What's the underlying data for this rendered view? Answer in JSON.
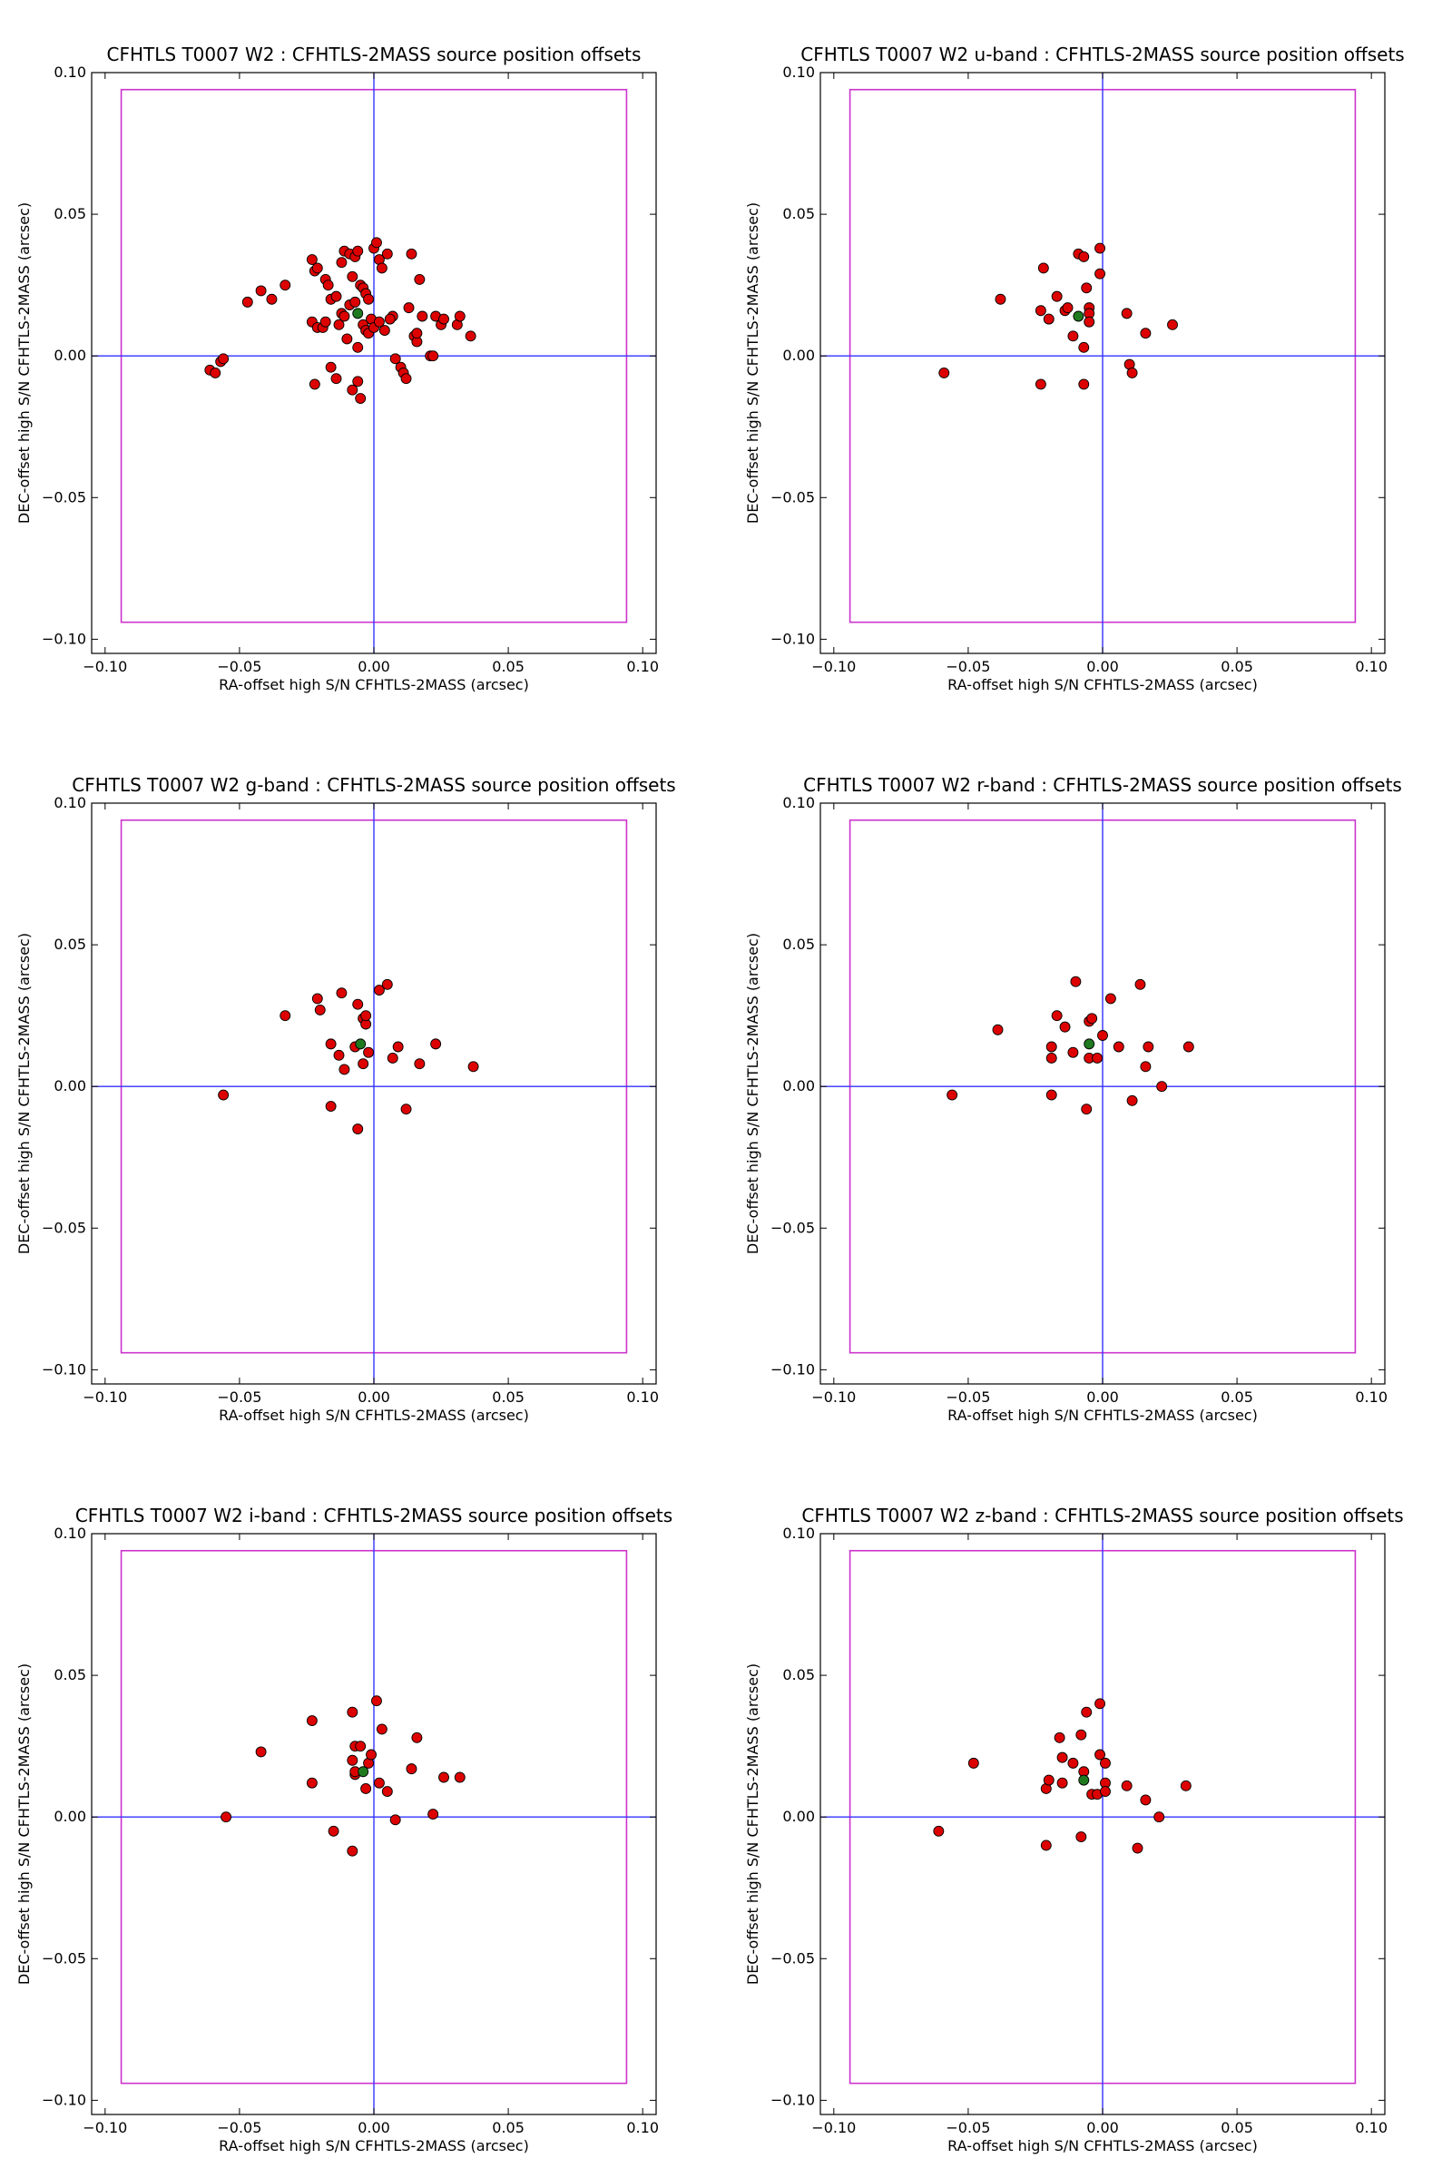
{
  "figure": {
    "grid_columns": 2,
    "grid_rows": 3
  },
  "chart_data": [
    {
      "type": "scatter",
      "title": "CFHTLS T0007 W2 : CFHTLS-2MASS source position offsets",
      "xlabel": "RA-offset high S/N CFHTLS-2MASS (arcsec)",
      "ylabel": "DEC-offset high S/N CFHTLS-2MASS (arcsec)",
      "xlim": [
        -0.105,
        0.105
      ],
      "ylim": [
        -0.105,
        0.1
      ],
      "xticks": [
        -0.1,
        -0.05,
        0.0,
        0.05,
        0.1
      ],
      "xtick_labels": [
        "−0.10",
        "−0.05",
        "0.00",
        "0.05",
        "0.10"
      ],
      "yticks": [
        -0.1,
        -0.05,
        0.0,
        0.05,
        0.1
      ],
      "ytick_labels": [
        "−0.10",
        "−0.05",
        "0.00",
        "0.05",
        "0.10"
      ],
      "grid": false,
      "reference_box": {
        "x": [
          -0.094,
          0.094
        ],
        "y": [
          -0.094,
          0.094
        ],
        "color": "#cc33cc"
      },
      "reference_lines": {
        "x": 0,
        "y": 0,
        "color": "#3333ff"
      },
      "mean": {
        "x": -0.006,
        "y": 0.015,
        "color": "#1f7a1f"
      },
      "points_color": "#dd0000",
      "points": [
        [
          -0.061,
          -0.005
        ],
        [
          -0.059,
          -0.006
        ],
        [
          -0.057,
          -0.002
        ],
        [
          -0.056,
          -0.001
        ],
        [
          -0.047,
          0.019
        ],
        [
          -0.042,
          0.023
        ],
        [
          -0.038,
          0.02
        ],
        [
          -0.033,
          0.025
        ],
        [
          -0.023,
          0.034
        ],
        [
          -0.022,
          0.03
        ],
        [
          -0.021,
          0.031
        ],
        [
          -0.023,
          0.012
        ],
        [
          -0.021,
          0.01
        ],
        [
          -0.022,
          -0.01
        ],
        [
          -0.018,
          0.027
        ],
        [
          -0.017,
          0.025
        ],
        [
          -0.016,
          0.02
        ],
        [
          -0.014,
          0.021
        ],
        [
          -0.012,
          0.015
        ],
        [
          -0.011,
          0.014
        ],
        [
          -0.009,
          0.018
        ],
        [
          -0.008,
          0.028
        ],
        [
          -0.019,
          0.01
        ],
        [
          -0.018,
          0.012
        ],
        [
          -0.016,
          -0.004
        ],
        [
          -0.014,
          -0.008
        ],
        [
          -0.013,
          0.011
        ],
        [
          -0.012,
          0.033
        ],
        [
          -0.011,
          0.037
        ],
        [
          -0.009,
          0.036
        ],
        [
          -0.007,
          0.035
        ],
        [
          -0.006,
          0.037
        ],
        [
          -0.008,
          -0.012
        ],
        [
          -0.006,
          -0.009
        ],
        [
          -0.005,
          -0.015
        ],
        [
          -0.01,
          0.006
        ],
        [
          -0.006,
          0.003
        ],
        [
          -0.005,
          0.025
        ],
        [
          -0.004,
          0.024
        ],
        [
          -0.003,
          0.022
        ],
        [
          -0.002,
          0.02
        ],
        [
          -0.004,
          0.011
        ],
        [
          -0.003,
          0.009
        ],
        [
          -0.002,
          0.008
        ],
        [
          -0.001,
          0.013
        ],
        [
          0.0,
          0.038
        ],
        [
          0.001,
          0.04
        ],
        [
          0.002,
          0.034
        ],
        [
          0.003,
          0.031
        ],
        [
          0.004,
          0.009
        ],
        [
          0.005,
          0.036
        ],
        [
          0.007,
          0.014
        ],
        [
          0.008,
          -0.001
        ],
        [
          0.01,
          -0.004
        ],
        [
          0.011,
          -0.006
        ],
        [
          0.012,
          -0.008
        ],
        [
          0.013,
          0.017
        ],
        [
          0.014,
          0.036
        ],
        [
          0.015,
          0.007
        ],
        [
          0.016,
          0.005
        ],
        [
          0.017,
          0.027
        ],
        [
          0.018,
          0.014
        ],
        [
          0.021,
          0.0
        ],
        [
          0.022,
          0.0
        ],
        [
          0.023,
          0.014
        ],
        [
          0.025,
          0.011
        ],
        [
          0.026,
          0.013
        ],
        [
          0.031,
          0.011
        ],
        [
          0.032,
          0.014
        ],
        [
          0.036,
          0.007
        ],
        [
          0.0,
          0.01
        ],
        [
          0.002,
          0.012
        ],
        [
          -0.007,
          0.019
        ],
        [
          0.016,
          0.008
        ],
        [
          0.006,
          0.013
        ]
      ]
    },
    {
      "type": "scatter",
      "title": "CFHTLS T0007 W2 u-band : CFHTLS-2MASS source position offsets",
      "xlabel": "RA-offset high S/N CFHTLS-2MASS (arcsec)",
      "ylabel": "DEC-offset high S/N CFHTLS-2MASS (arcsec)",
      "xlim": [
        -0.105,
        0.105
      ],
      "ylim": [
        -0.105,
        0.1
      ],
      "xticks": [
        -0.1,
        -0.05,
        0.0,
        0.05,
        0.1
      ],
      "xtick_labels": [
        "−0.10",
        "−0.05",
        "0.00",
        "0.05",
        "0.10"
      ],
      "yticks": [
        -0.1,
        -0.05,
        0.0,
        0.05,
        0.1
      ],
      "ytick_labels": [
        "−0.10",
        "−0.05",
        "0.00",
        "0.05",
        "0.10"
      ],
      "grid": false,
      "reference_box": {
        "x": [
          -0.094,
          0.094
        ],
        "y": [
          -0.094,
          0.094
        ],
        "color": "#cc33cc"
      },
      "reference_lines": {
        "x": 0,
        "y": 0,
        "color": "#3333ff"
      },
      "mean": {
        "x": -0.009,
        "y": 0.014,
        "color": "#1f7a1f"
      },
      "points_color": "#dd0000",
      "points": [
        [
          -0.059,
          -0.006
        ],
        [
          -0.038,
          0.02
        ],
        [
          -0.022,
          0.031
        ],
        [
          -0.023,
          0.016
        ],
        [
          -0.02,
          0.013
        ],
        [
          -0.017,
          0.021
        ],
        [
          -0.014,
          0.016
        ],
        [
          -0.013,
          0.017
        ],
        [
          -0.011,
          0.007
        ],
        [
          -0.009,
          0.036
        ],
        [
          -0.007,
          0.035
        ],
        [
          -0.006,
          0.024
        ],
        [
          -0.005,
          0.017
        ],
        [
          -0.005,
          0.015
        ],
        [
          -0.005,
          0.012
        ],
        [
          -0.007,
          0.003
        ],
        [
          -0.001,
          0.038
        ],
        [
          -0.001,
          0.029
        ],
        [
          -0.023,
          -0.01
        ],
        [
          -0.007,
          -0.01
        ],
        [
          0.009,
          0.015
        ],
        [
          0.01,
          -0.003
        ],
        [
          0.011,
          -0.006
        ],
        [
          0.016,
          0.008
        ],
        [
          0.026,
          0.011
        ]
      ]
    },
    {
      "type": "scatter",
      "title": "CFHTLS T0007 W2 g-band : CFHTLS-2MASS source position offsets",
      "xlabel": "RA-offset high S/N CFHTLS-2MASS (arcsec)",
      "ylabel": "DEC-offset high S/N CFHTLS-2MASS (arcsec)",
      "xlim": [
        -0.105,
        0.105
      ],
      "ylim": [
        -0.105,
        0.1
      ],
      "xticks": [
        -0.1,
        -0.05,
        0.0,
        0.05,
        0.1
      ],
      "xtick_labels": [
        "−0.10",
        "−0.05",
        "0.00",
        "0.05",
        "0.10"
      ],
      "yticks": [
        -0.1,
        -0.05,
        0.0,
        0.05,
        0.1
      ],
      "ytick_labels": [
        "−0.10",
        "−0.05",
        "0.00",
        "0.05",
        "0.10"
      ],
      "grid": false,
      "reference_box": {
        "x": [
          -0.094,
          0.094
        ],
        "y": [
          -0.094,
          0.094
        ],
        "color": "#cc33cc"
      },
      "reference_lines": {
        "x": 0,
        "y": 0,
        "color": "#3333ff"
      },
      "mean": {
        "x": -0.005,
        "y": 0.015,
        "color": "#1f7a1f"
      },
      "points_color": "#dd0000",
      "points": [
        [
          -0.056,
          -0.003
        ],
        [
          -0.033,
          0.025
        ],
        [
          -0.021,
          0.031
        ],
        [
          -0.02,
          0.027
        ],
        [
          -0.016,
          0.015
        ],
        [
          -0.013,
          0.011
        ],
        [
          -0.012,
          0.033
        ],
        [
          -0.011,
          0.006
        ],
        [
          -0.016,
          -0.007
        ],
        [
          -0.006,
          0.029
        ],
        [
          -0.004,
          0.024
        ],
        [
          -0.003,
          0.022
        ],
        [
          -0.003,
          0.025
        ],
        [
          -0.004,
          0.008
        ],
        [
          -0.002,
          0.012
        ],
        [
          0.002,
          0.034
        ],
        [
          0.005,
          0.036
        ],
        [
          0.007,
          0.01
        ],
        [
          0.009,
          0.014
        ],
        [
          -0.006,
          -0.015
        ],
        [
          0.012,
          -0.008
        ],
        [
          0.017,
          0.008
        ],
        [
          0.023,
          0.015
        ],
        [
          0.037,
          0.007
        ],
        [
          -0.007,
          0.014
        ]
      ]
    },
    {
      "type": "scatter",
      "title": "CFHTLS T0007 W2 r-band : CFHTLS-2MASS source position offsets",
      "xlabel": "RA-offset high S/N CFHTLS-2MASS (arcsec)",
      "ylabel": "DEC-offset high S/N CFHTLS-2MASS (arcsec)",
      "xlim": [
        -0.105,
        0.105
      ],
      "ylim": [
        -0.105,
        0.1
      ],
      "xticks": [
        -0.1,
        -0.05,
        0.0,
        0.05,
        0.1
      ],
      "xtick_labels": [
        "−0.10",
        "−0.05",
        "0.00",
        "0.05",
        "0.10"
      ],
      "yticks": [
        -0.1,
        -0.05,
        0.0,
        0.05,
        0.1
      ],
      "ytick_labels": [
        "−0.10",
        "−0.05",
        "0.00",
        "0.05",
        "0.10"
      ],
      "grid": false,
      "reference_box": {
        "x": [
          -0.094,
          0.094
        ],
        "y": [
          -0.094,
          0.094
        ],
        "color": "#cc33cc"
      },
      "reference_lines": {
        "x": 0,
        "y": 0,
        "color": "#3333ff"
      },
      "mean": {
        "x": -0.005,
        "y": 0.015,
        "color": "#1f7a1f"
      },
      "points_color": "#dd0000",
      "points": [
        [
          -0.056,
          -0.003
        ],
        [
          -0.039,
          0.02
        ],
        [
          -0.019,
          0.014
        ],
        [
          -0.019,
          0.01
        ],
        [
          -0.019,
          -0.003
        ],
        [
          -0.017,
          0.025
        ],
        [
          -0.014,
          0.021
        ],
        [
          -0.011,
          0.012
        ],
        [
          -0.01,
          0.037
        ],
        [
          -0.005,
          0.023
        ],
        [
          -0.004,
          0.024
        ],
        [
          -0.005,
          0.01
        ],
        [
          -0.006,
          -0.008
        ],
        [
          -0.002,
          0.01
        ],
        [
          0.0,
          0.018
        ],
        [
          0.003,
          0.031
        ],
        [
          0.006,
          0.014
        ],
        [
          0.011,
          -0.005
        ],
        [
          0.014,
          0.036
        ],
        [
          0.016,
          0.007
        ],
        [
          0.017,
          0.014
        ],
        [
          0.022,
          0.0
        ],
        [
          0.032,
          0.014
        ]
      ]
    },
    {
      "type": "scatter",
      "title": "CFHTLS T0007 W2 i-band : CFHTLS-2MASS source position offsets",
      "xlabel": "RA-offset high S/N CFHTLS-2MASS (arcsec)",
      "ylabel": "DEC-offset high S/N CFHTLS-2MASS (arcsec)",
      "xlim": [
        -0.105,
        0.105
      ],
      "ylim": [
        -0.105,
        0.1
      ],
      "xticks": [
        -0.1,
        -0.05,
        0.0,
        0.05,
        0.1
      ],
      "xtick_labels": [
        "−0.10",
        "−0.05",
        "0.00",
        "0.05",
        "0.10"
      ],
      "yticks": [
        -0.1,
        -0.05,
        0.0,
        0.05,
        0.1
      ],
      "ytick_labels": [
        "−0.10",
        "−0.05",
        "0.00",
        "0.05",
        "0.10"
      ],
      "grid": false,
      "reference_box": {
        "x": [
          -0.094,
          0.094
        ],
        "y": [
          -0.094,
          0.094
        ],
        "color": "#cc33cc"
      },
      "reference_lines": {
        "x": 0,
        "y": 0,
        "color": "#3333ff"
      },
      "mean": {
        "x": -0.004,
        "y": 0.016,
        "color": "#1f7a1f"
      },
      "points_color": "#dd0000",
      "points": [
        [
          -0.055,
          0.0
        ],
        [
          -0.042,
          0.023
        ],
        [
          -0.023,
          0.034
        ],
        [
          -0.023,
          0.012
        ],
        [
          -0.015,
          -0.005
        ],
        [
          -0.008,
          0.037
        ],
        [
          -0.008,
          0.02
        ],
        [
          -0.007,
          0.025
        ],
        [
          -0.007,
          0.015
        ],
        [
          -0.005,
          0.025
        ],
        [
          -0.003,
          0.01
        ],
        [
          -0.002,
          0.019
        ],
        [
          -0.001,
          0.022
        ],
        [
          -0.008,
          -0.012
        ],
        [
          0.001,
          0.041
        ],
        [
          0.002,
          0.012
        ],
        [
          0.003,
          0.031
        ],
        [
          0.005,
          0.009
        ],
        [
          0.008,
          -0.001
        ],
        [
          0.014,
          0.017
        ],
        [
          0.016,
          0.028
        ],
        [
          0.022,
          0.001
        ],
        [
          0.026,
          0.014
        ],
        [
          0.032,
          0.014
        ],
        [
          -0.007,
          0.016
        ]
      ]
    },
    {
      "type": "scatter",
      "title": "CFHTLS T0007 W2 z-band : CFHTLS-2MASS source position offsets",
      "xlabel": "RA-offset high S/N CFHTLS-2MASS (arcsec)",
      "ylabel": "DEC-offset high S/N CFHTLS-2MASS (arcsec)",
      "xlim": [
        -0.105,
        0.105
      ],
      "ylim": [
        -0.105,
        0.1
      ],
      "xticks": [
        -0.1,
        -0.05,
        0.0,
        0.05,
        0.1
      ],
      "xtick_labels": [
        "−0.10",
        "−0.05",
        "0.00",
        "0.05",
        "0.10"
      ],
      "yticks": [
        -0.1,
        -0.05,
        0.0,
        0.05,
        0.1
      ],
      "ytick_labels": [
        "−0.10",
        "−0.05",
        "0.00",
        "0.05",
        "0.10"
      ],
      "grid": false,
      "reference_box": {
        "x": [
          -0.094,
          0.094
        ],
        "y": [
          -0.094,
          0.094
        ],
        "color": "#cc33cc"
      },
      "reference_lines": {
        "x": 0,
        "y": 0,
        "color": "#3333ff"
      },
      "mean": {
        "x": -0.007,
        "y": 0.013,
        "color": "#1f7a1f"
      },
      "points_color": "#dd0000",
      "points": [
        [
          -0.061,
          -0.005
        ],
        [
          -0.048,
          0.019
        ],
        [
          -0.021,
          0.01
        ],
        [
          -0.021,
          -0.01
        ],
        [
          -0.02,
          0.013
        ],
        [
          -0.016,
          0.028
        ],
        [
          -0.015,
          0.021
        ],
        [
          -0.015,
          0.012
        ],
        [
          -0.011,
          0.019
        ],
        [
          -0.008,
          0.029
        ],
        [
          -0.008,
          -0.007
        ],
        [
          -0.006,
          0.037
        ],
        [
          -0.007,
          0.016
        ],
        [
          -0.004,
          0.008
        ],
        [
          -0.002,
          0.008
        ],
        [
          -0.001,
          0.022
        ],
        [
          -0.001,
          0.04
        ],
        [
          0.001,
          0.019
        ],
        [
          0.001,
          0.012
        ],
        [
          0.001,
          0.009
        ],
        [
          0.009,
          0.011
        ],
        [
          0.013,
          -0.011
        ],
        [
          0.016,
          0.006
        ],
        [
          0.021,
          0.0
        ],
        [
          0.031,
          0.011
        ]
      ]
    }
  ]
}
